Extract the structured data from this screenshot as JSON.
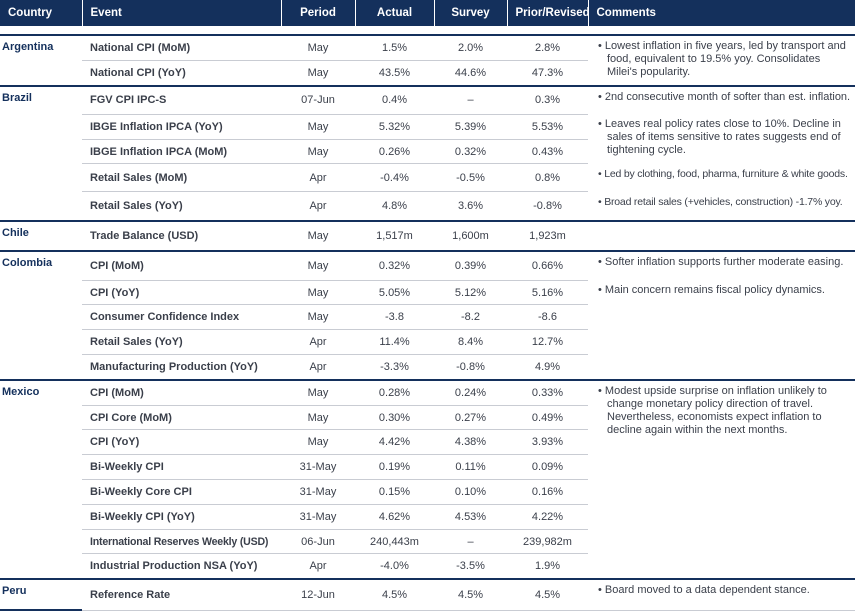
{
  "headers": {
    "country": "Country",
    "event": "Event",
    "period": "Period",
    "actual": "Actual",
    "survey": "Survey",
    "prior": "Prior/Revised",
    "comments": "Comments"
  },
  "argentina": {
    "country": "Argentina",
    "rows": [
      {
        "event": "National CPI (MoM)",
        "period": "May",
        "actual": "1.5%",
        "survey": "2.0%",
        "prior": "2.8%"
      },
      {
        "event": "National CPI (YoY)",
        "period": "May",
        "actual": "43.5%",
        "survey": "44.6%",
        "prior": "47.3%"
      }
    ],
    "comments": [
      "• Lowest inflation in five years, led by transport and food, equivalent to 19.5% yoy. Consolidates Milei's popularity."
    ]
  },
  "brazil": {
    "country": "Brazil",
    "rows": [
      {
        "event": "FGV CPI IPC-S",
        "period": "07-Jun",
        "actual": "0.4%",
        "survey": "–",
        "prior": "0.3%"
      },
      {
        "event": "IBGE Inflation IPCA (YoY)",
        "period": "May",
        "actual": "5.32%",
        "survey": "5.39%",
        "prior": "5.53%"
      },
      {
        "event": "IBGE Inflation IPCA (MoM)",
        "period": "May",
        "actual": "0.26%",
        "survey": "0.32%",
        "prior": "0.43%"
      },
      {
        "event": "Retail Sales (MoM)",
        "period": "Apr",
        "actual": "-0.4%",
        "survey": "-0.5%",
        "prior": "0.8%"
      },
      {
        "event": "Retail Sales (YoY)",
        "period": "Apr",
        "actual": "4.8%",
        "survey": "3.6%",
        "prior": "-0.8%"
      }
    ],
    "comments": [
      "• 2nd consecutive month of softer than est. inflation.",
      "• Leaves real policy rates close to 10%. Decline in sales of items sensitive to rates suggests end of tightening cycle.",
      "• Led by clothing, food, pharma, furniture & white goods.",
      "• Broad retail sales (+vehicles, construction) -1.7% yoy."
    ]
  },
  "chile": {
    "country": "Chile",
    "rows": [
      {
        "event": "Trade Balance (USD)",
        "period": "May",
        "actual": "1,517m",
        "survey": "1,600m",
        "prior": "1,923m"
      }
    ],
    "comments": []
  },
  "colombia": {
    "country": "Colombia",
    "rows": [
      {
        "event": "CPI (MoM)",
        "period": "May",
        "actual": "0.32%",
        "survey": "0.39%",
        "prior": "0.66%"
      },
      {
        "event": "CPI (YoY)",
        "period": "May",
        "actual": "5.05%",
        "survey": "5.12%",
        "prior": "5.16%"
      },
      {
        "event": "Consumer Confidence Index",
        "period": "May",
        "actual": "-3.8",
        "survey": "-8.2",
        "prior": "-8.6"
      },
      {
        "event": "Retail Sales (YoY)",
        "period": "Apr",
        "actual": "11.4%",
        "survey": "8.4%",
        "prior": "12.7%"
      },
      {
        "event": "Manufacturing Production (YoY)",
        "period": "Apr",
        "actual": "-3.3%",
        "survey": "-0.8%",
        "prior": "4.9%"
      }
    ],
    "comments": [
      "• Softer inflation supports further moderate easing.",
      "• Main concern remains fiscal policy dynamics."
    ]
  },
  "mexico": {
    "country": "Mexico",
    "rows": [
      {
        "event": "CPI (MoM)",
        "period": "May",
        "actual": "0.28%",
        "survey": "0.24%",
        "prior": "0.33%"
      },
      {
        "event": "CPI Core (MoM)",
        "period": "May",
        "actual": "0.30%",
        "survey": "0.27%",
        "prior": "0.49%"
      },
      {
        "event": "CPI (YoY)",
        "period": "May",
        "actual": "4.42%",
        "survey": "4.38%",
        "prior": "3.93%"
      },
      {
        "event": "Bi-Weekly CPI",
        "period": "31-May",
        "actual": "0.19%",
        "survey": "0.11%",
        "prior": "0.09%"
      },
      {
        "event": "Bi-Weekly Core CPI",
        "period": "31-May",
        "actual": "0.15%",
        "survey": "0.10%",
        "prior": "0.16%"
      },
      {
        "event": "Bi-Weekly CPI (YoY)",
        "period": "31-May",
        "actual": "4.62%",
        "survey": "4.53%",
        "prior": "4.22%"
      },
      {
        "event": "International Reserves Weekly (USD)",
        "period": "06-Jun",
        "actual": "240,443m",
        "survey": "–",
        "prior": "239,982m"
      },
      {
        "event": "Industrial Production NSA (YoY)",
        "period": "Apr",
        "actual": "-4.0%",
        "survey": "-3.5%",
        "prior": "1.9%"
      }
    ],
    "comments": [
      "• Modest upside surprise on inflation unlikely to change monetary policy direction of travel. Nevertheless, economists expect inflation to decline again within the next months."
    ]
  },
  "peru": {
    "country": "Peru",
    "rows": [
      {
        "event": "Reference Rate",
        "period": "12-Jun",
        "actual": "4.5%",
        "survey": "4.5%",
        "prior": "4.5%"
      }
    ],
    "comments": [
      "• Board moved to a data dependent stance."
    ]
  }
}
